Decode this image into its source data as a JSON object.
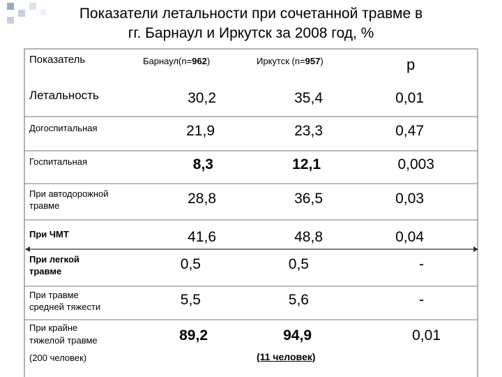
{
  "title": [
    "Показатели летальности при сочетанной травме в",
    "гг. Барнаул и Иркутск за 2008 год, %"
  ],
  "table": {
    "header": [
      "Показатель",
      [
        "Барнаул(n=",
        "962",
        ")"
      ],
      [
        "Иркутск (n=",
        "957",
        ")"
      ],
      "p"
    ],
    "rows": [
      [
        [
          "Летальность"
        ],
        [
          "30,2"
        ],
        [
          "35,4"
        ],
        "0,01"
      ],
      [
        [
          "Догоспитальная"
        ],
        [
          "21,9"
        ],
        [
          "23,3"
        ],
        "0,47"
      ],
      [
        [
          "Госпитальная"
        ],
        [
          "8,3"
        ],
        [
          "12,1"
        ],
        "0,003"
      ],
      [
        [
          "При автодорожной",
          "травме"
        ],
        [
          "28,8"
        ],
        [
          "36,5"
        ],
        "0,03"
      ],
      [
        [
          "При ЧМТ"
        ],
        [
          "41,6"
        ],
        [
          "48,8"
        ],
        "0,04"
      ],
      [
        [
          "При легкой",
          "травме"
        ],
        [
          "0,5"
        ],
        [
          "0,5"
        ],
        "-"
      ],
      [
        [
          "При травме",
          "средней тяжести"
        ],
        [
          "5,5"
        ],
        [
          "5,6"
        ],
        "-"
      ],
      [
        [
          "При крайне",
          "тяжелой травме",
          "(200 человек)"
        ],
        [
          "89,2"
        ],
        [
          "94,9",
          "(11 человек)"
        ],
        "0,01"
      ]
    ]
  }
}
